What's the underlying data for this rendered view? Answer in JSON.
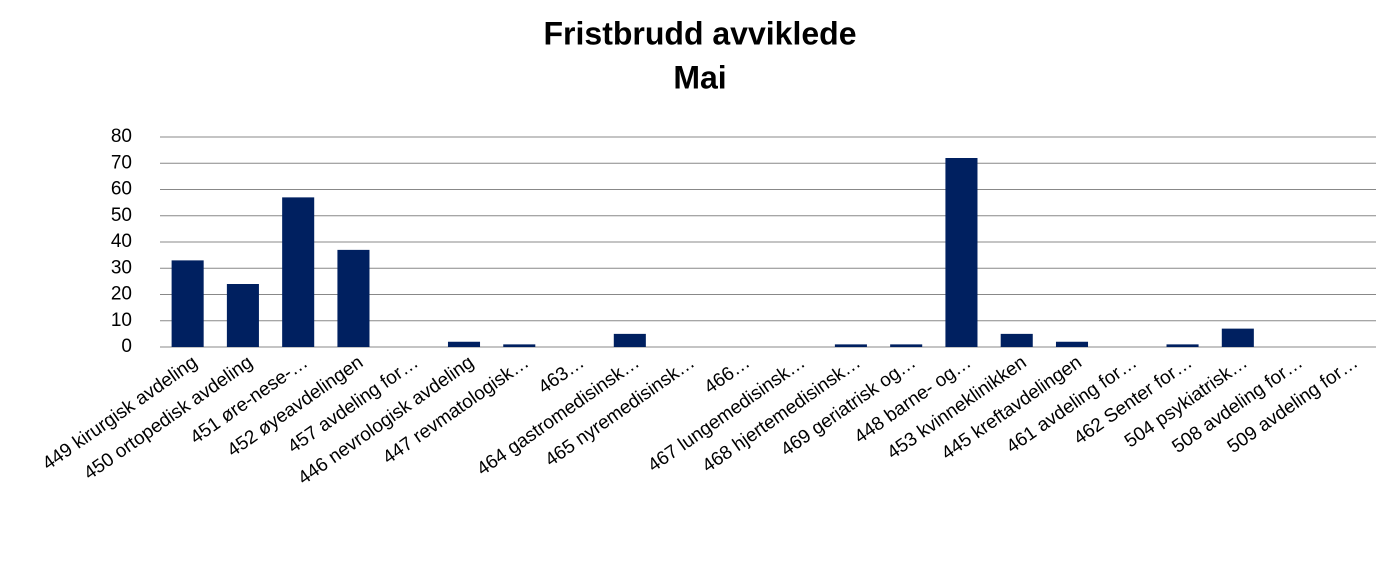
{
  "chart_data": {
    "type": "bar",
    "title": "Fristbrudd avviklede",
    "subtitle": "Mai",
    "categories": [
      "449 kirurgisk avdeling",
      "450 ortopedisk avdeling",
      "451 øre-nese-…",
      "452 øyeavdelingen",
      "457 avdeling for…",
      "446 nevrologisk avdeling",
      "447 revmatologisk…",
      "463…",
      "464 gastromedisinsk…",
      "465 nyremedisinsk…",
      "466…",
      "467 lungemedisinsk…",
      "468 hjertemedisinsk…",
      "469 geriatrisk og…",
      "448 barne- og…",
      "453 kvinneklinikken",
      "445 kreftavdelingen",
      "461 avdeling for…",
      "462 Senter for…",
      "504 psykiatrisk…",
      "508 avdeling for…",
      "509 avdeling for…"
    ],
    "values": [
      33,
      24,
      57,
      37,
      0,
      2,
      1,
      0,
      5,
      0,
      0,
      0,
      1,
      1,
      72,
      5,
      2,
      0,
      1,
      7,
      0,
      0
    ],
    "color": "#002060",
    "ylim": [
      0,
      80
    ],
    "yticks": [
      0,
      10,
      20,
      30,
      40,
      50,
      60,
      70,
      80
    ],
    "grid": true
  }
}
